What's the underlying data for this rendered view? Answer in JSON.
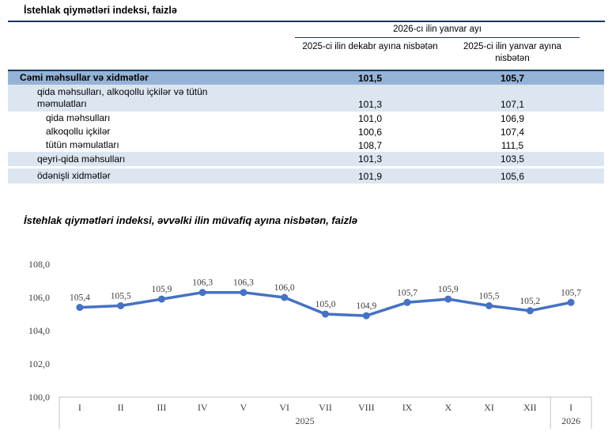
{
  "page": {
    "title": "İstehlak qiymətləri indeksi, faizlə"
  },
  "table": {
    "span_header": "2026-cı ilin yanvar ayı",
    "col_headers": [
      "2025-ci ilin dekabr ayına nisbətən",
      "2025-ci ilin yanvar ayına nisbətən"
    ],
    "rows": [
      {
        "label": "Cəmi məhsullar və xidmətlər",
        "dec": "101,5",
        "jan": "105,7",
        "style": "total"
      },
      {
        "label": "qida məhsulları, alkoqollu içkilər və tütün məmulatları",
        "dec": "101,3",
        "jan": "107,1",
        "style": "group"
      },
      {
        "label": "qida məhsulları",
        "dec": "101,0",
        "jan": "106,9",
        "style": "sub"
      },
      {
        "label": "alkoqollu içkilər",
        "dec": "100,6",
        "jan": "107,4",
        "style": "sub"
      },
      {
        "label": "tütün məmulatları",
        "dec": "108,7",
        "jan": "111,5",
        "style": "sub"
      },
      {
        "label": "qeyri-qida məhsulları",
        "dec": "101,3",
        "jan": "103,5",
        "style": "band"
      },
      {
        "label": "ödənişli xidmətlər",
        "dec": "101,9",
        "jan": "105,6",
        "style": "band"
      }
    ]
  },
  "chart_data": {
    "type": "line",
    "title": "İstehlak qiymətləri indeksi, əvvəlki ilin müvafiq ayına nisbətən, faizlə",
    "categories": [
      "I",
      "II",
      "III",
      "IV",
      "V",
      "VI",
      "VII",
      "VIII",
      "IX",
      "X",
      "XI",
      "XII",
      "I"
    ],
    "year_groups": [
      {
        "label": "2025",
        "span": 12
      },
      {
        "label": "2026",
        "span": 1
      }
    ],
    "values": [
      105.4,
      105.5,
      105.9,
      106.3,
      106.3,
      106.0,
      105.0,
      104.9,
      105.7,
      105.9,
      105.5,
      105.2,
      105.7
    ],
    "ylim": [
      100,
      108
    ],
    "ytick_step": 2,
    "grid": false,
    "legend": false,
    "decimal_separator": ",",
    "line_color": "#4472C4",
    "axis_color": "#C0C0C0",
    "tick_text_color": "#404040"
  },
  "colors": {
    "accent_navy": "#17375E",
    "row_total_bg": "#95B3D7",
    "row_band_bg": "#DCE6F1",
    "line_blue": "#4472C4"
  }
}
